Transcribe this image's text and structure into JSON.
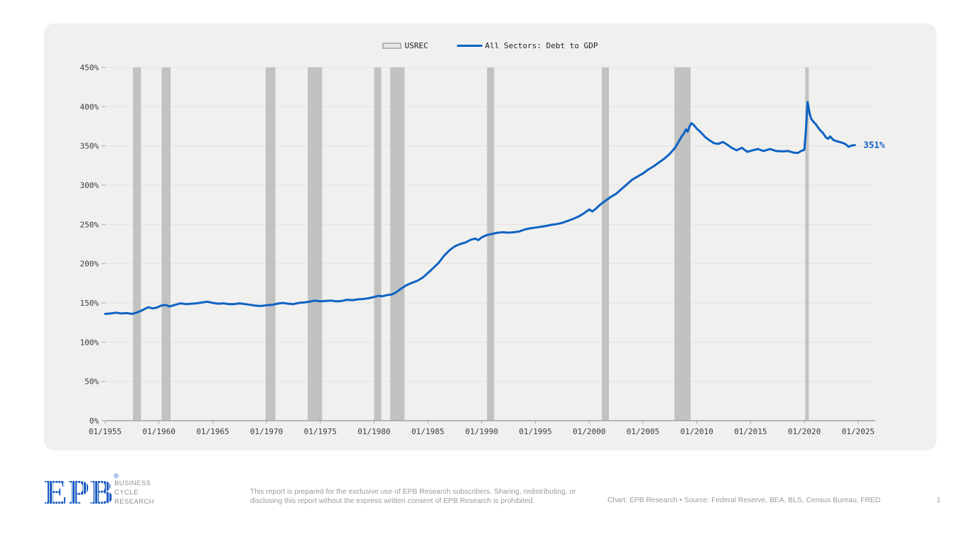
{
  "legend": {
    "usrec_label": "USREC",
    "series_label": "All Sectors: Debt to GDP"
  },
  "chart_data": {
    "type": "line",
    "series": [
      {
        "name": "All Sectors: Debt to GDP",
        "color": "#0e62c4"
      }
    ],
    "x_tick_years": [
      1955,
      1960,
      1965,
      1970,
      1975,
      1980,
      1985,
      1990,
      1995,
      2000,
      2005,
      2010,
      2015,
      2020,
      2025
    ],
    "x_tick_label_prefix": "01/",
    "y_ticks": [
      0,
      50,
      100,
      150,
      200,
      250,
      300,
      350,
      400,
      450
    ],
    "y_tick_suffix": "%",
    "ylim": [
      0,
      450
    ],
    "xlim": [
      1955,
      2026.6
    ],
    "grid": "horizontal",
    "legend_position": "top-center",
    "end_label": "351%",
    "recession_band_color": "#c2c2c1",
    "gridline_color": "#e2e2e0",
    "axis_color": "#a3a3a2",
    "tick_text_color": "#3c3c3c",
    "recessions": [
      [
        1957.58,
        1958.33
      ],
      [
        1960.25,
        1961.08
      ],
      [
        1969.92,
        1970.83
      ],
      [
        1973.83,
        1975.17
      ],
      [
        1980.0,
        1980.67
      ],
      [
        1981.5,
        1982.83
      ],
      [
        1990.5,
        1991.17
      ],
      [
        2001.17,
        2001.83
      ],
      [
        2007.92,
        2009.42
      ],
      [
        2020.08,
        2020.42
      ]
    ],
    "points": [
      [
        1955.0,
        136
      ],
      [
        1955.5,
        136.5
      ],
      [
        1956.0,
        137.5
      ],
      [
        1956.5,
        136.5
      ],
      [
        1957.0,
        137
      ],
      [
        1957.5,
        136
      ],
      [
        1958.0,
        138
      ],
      [
        1958.5,
        141
      ],
      [
        1959.0,
        144.5
      ],
      [
        1959.4,
        143
      ],
      [
        1959.8,
        144
      ],
      [
        1960.2,
        146.5
      ],
      [
        1960.6,
        147.5
      ],
      [
        1961.0,
        145.5
      ],
      [
        1961.5,
        147.5
      ],
      [
        1962.0,
        149.5
      ],
      [
        1962.5,
        148.5
      ],
      [
        1963.0,
        149
      ],
      [
        1963.5,
        149.5
      ],
      [
        1964.0,
        150.5
      ],
      [
        1964.5,
        151.5
      ],
      [
        1965.0,
        150
      ],
      [
        1965.5,
        149
      ],
      [
        1966.0,
        149.5
      ],
      [
        1966.5,
        148.5
      ],
      [
        1967.0,
        148.5
      ],
      [
        1967.5,
        149.5
      ],
      [
        1968.0,
        148.5
      ],
      [
        1968.5,
        147.5
      ],
      [
        1969.0,
        146.5
      ],
      [
        1969.5,
        146
      ],
      [
        1970.0,
        147
      ],
      [
        1970.5,
        147.5
      ],
      [
        1971.0,
        149
      ],
      [
        1971.5,
        150
      ],
      [
        1972.0,
        149
      ],
      [
        1972.5,
        148.5
      ],
      [
        1973.0,
        150
      ],
      [
        1973.5,
        150.5
      ],
      [
        1974.0,
        151.5
      ],
      [
        1974.5,
        153
      ],
      [
        1975.0,
        152
      ],
      [
        1975.5,
        152.5
      ],
      [
        1976.0,
        153
      ],
      [
        1976.5,
        152
      ],
      [
        1977.0,
        152.5
      ],
      [
        1977.5,
        154
      ],
      [
        1978.0,
        153.5
      ],
      [
        1978.5,
        154.5
      ],
      [
        1979.0,
        155
      ],
      [
        1979.5,
        156
      ],
      [
        1980.0,
        157.5
      ],
      [
        1980.4,
        159
      ],
      [
        1980.8,
        158.5
      ],
      [
        1981.2,
        160
      ],
      [
        1981.6,
        160.5
      ],
      [
        1982.0,
        163
      ],
      [
        1982.5,
        168
      ],
      [
        1983.0,
        172.5
      ],
      [
        1983.5,
        175.5
      ],
      [
        1984.0,
        178
      ],
      [
        1984.5,
        182
      ],
      [
        1985.0,
        188
      ],
      [
        1985.5,
        194.5
      ],
      [
        1986.0,
        201
      ],
      [
        1986.5,
        210
      ],
      [
        1987.0,
        217
      ],
      [
        1987.5,
        222
      ],
      [
        1988.0,
        225
      ],
      [
        1988.5,
        227
      ],
      [
        1989.0,
        230.5
      ],
      [
        1989.4,
        232
      ],
      [
        1989.7,
        230
      ],
      [
        1990.0,
        233.5
      ],
      [
        1990.5,
        236.5
      ],
      [
        1991.0,
        238
      ],
      [
        1991.5,
        239.5
      ],
      [
        1992.0,
        240
      ],
      [
        1992.5,
        239.5
      ],
      [
        1993.0,
        240
      ],
      [
        1993.5,
        241
      ],
      [
        1994.0,
        243.5
      ],
      [
        1994.5,
        245
      ],
      [
        1995.0,
        246
      ],
      [
        1995.5,
        247
      ],
      [
        1996.0,
        248
      ],
      [
        1996.5,
        249.5
      ],
      [
        1997.0,
        250.5
      ],
      [
        1997.5,
        252
      ],
      [
        1998.0,
        254.5
      ],
      [
        1998.5,
        257
      ],
      [
        1999.0,
        260
      ],
      [
        1999.5,
        264
      ],
      [
        2000.0,
        269
      ],
      [
        2000.3,
        266.5
      ],
      [
        2000.7,
        271
      ],
      [
        2001.0,
        275
      ],
      [
        2001.5,
        280
      ],
      [
        2002.0,
        285
      ],
      [
        2002.5,
        289
      ],
      [
        2003.0,
        295
      ],
      [
        2003.5,
        301
      ],
      [
        2004.0,
        307
      ],
      [
        2004.5,
        311
      ],
      [
        2005.0,
        315
      ],
      [
        2005.5,
        320
      ],
      [
        2006.0,
        324
      ],
      [
        2006.5,
        329
      ],
      [
        2007.0,
        334
      ],
      [
        2007.5,
        340
      ],
      [
        2008.0,
        348
      ],
      [
        2008.3,
        355
      ],
      [
        2008.6,
        362
      ],
      [
        2008.8,
        366
      ],
      [
        2009.0,
        371
      ],
      [
        2009.15,
        368
      ],
      [
        2009.3,
        374
      ],
      [
        2009.5,
        379
      ],
      [
        2009.7,
        377
      ],
      [
        2010.0,
        372
      ],
      [
        2010.4,
        367
      ],
      [
        2010.8,
        361
      ],
      [
        2011.2,
        357
      ],
      [
        2011.6,
        353.5
      ],
      [
        2012.0,
        352.5
      ],
      [
        2012.4,
        355
      ],
      [
        2012.8,
        352
      ],
      [
        2013.2,
        348
      ],
      [
        2013.7,
        344.5
      ],
      [
        2014.2,
        347.5
      ],
      [
        2014.7,
        342.5
      ],
      [
        2015.2,
        344.5
      ],
      [
        2015.7,
        346
      ],
      [
        2016.2,
        343.5
      ],
      [
        2016.8,
        346
      ],
      [
        2017.4,
        343.5
      ],
      [
        2018.0,
        343
      ],
      [
        2018.5,
        343.5
      ],
      [
        2019.0,
        341.5
      ],
      [
        2019.4,
        341
      ],
      [
        2019.7,
        343.5
      ],
      [
        2020.0,
        345
      ],
      [
        2020.15,
        370
      ],
      [
        2020.3,
        406
      ],
      [
        2020.5,
        391
      ],
      [
        2020.65,
        384
      ],
      [
        2020.9,
        380
      ],
      [
        2021.1,
        377
      ],
      [
        2021.4,
        371
      ],
      [
        2021.7,
        367
      ],
      [
        2022.0,
        361
      ],
      [
        2022.2,
        359
      ],
      [
        2022.4,
        362
      ],
      [
        2022.7,
        357.5
      ],
      [
        2023.0,
        356
      ],
      [
        2023.4,
        354.5
      ],
      [
        2023.8,
        352.5
      ],
      [
        2024.1,
        349
      ],
      [
        2024.4,
        350.5
      ],
      [
        2024.7,
        351
      ]
    ]
  },
  "footer": {
    "logo_text": "EPB",
    "logo_reg": "®",
    "org_lines": [
      "BUSINESS",
      "CYCLE",
      "RESEARCH"
    ],
    "disclaimer": "This report is prepared for the exclusive use of EPB Research subscribers. Sharing, redistributing, or disclosing this report without the express written consent of EPB Research is prohibited.",
    "credit": "Chart: EPB Research  •  Source: Federal Reserve, BEA, BLS, Census Bureau, FRED",
    "page_number": "1"
  }
}
